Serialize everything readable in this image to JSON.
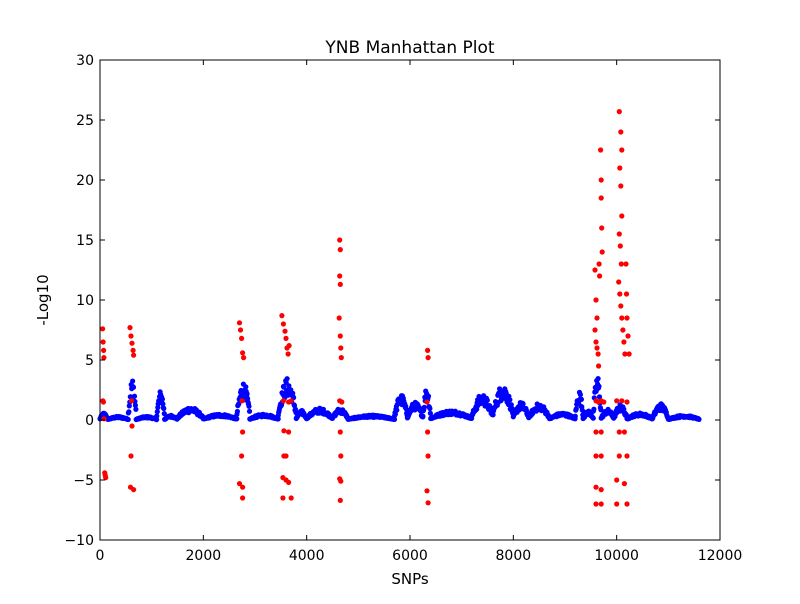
{
  "chart_data": {
    "type": "scatter",
    "title": "YNB Manhattan Plot",
    "xlabel": "SNPs",
    "ylabel": "-Log10",
    "xlim": [
      0,
      12000
    ],
    "ylim": [
      -10,
      30
    ],
    "xticks": [
      0,
      2000,
      4000,
      6000,
      8000,
      10000,
      12000
    ],
    "yticks": [
      -10,
      -5,
      0,
      5,
      10,
      15,
      20,
      25,
      30
    ],
    "xtick_labels": [
      "0",
      "2000",
      "4000",
      "6000",
      "8000",
      "10000",
      "12000"
    ],
    "ytick_labels": [
      "−10",
      "−5",
      "0",
      "5",
      "10",
      "15",
      "20",
      "25",
      "30"
    ],
    "grid": false,
    "series": [
      {
        "color": "#0000ff",
        "segments": [
          [
            0,
            150,
            0.6
          ],
          [
            150,
            550,
            0.3
          ],
          [
            550,
            700,
            3.5
          ],
          [
            700,
            1100,
            0.3
          ],
          [
            1100,
            1250,
            2.5
          ],
          [
            1250,
            1500,
            0.4
          ],
          [
            1500,
            2000,
            1.1
          ],
          [
            2000,
            2650,
            0.5
          ],
          [
            2650,
            2900,
            3.2
          ],
          [
            2900,
            3450,
            0.5
          ],
          [
            3450,
            3800,
            3.5
          ],
          [
            3800,
            4000,
            0.8
          ],
          [
            4000,
            4500,
            1.0
          ],
          [
            4500,
            4800,
            1.0
          ],
          [
            4800,
            5700,
            0.4
          ],
          [
            5700,
            5950,
            2.2
          ],
          [
            5950,
            6250,
            1.5
          ],
          [
            6250,
            6400,
            2.8
          ],
          [
            6400,
            7200,
            0.8
          ],
          [
            7200,
            7600,
            2.2
          ],
          [
            7600,
            8000,
            3.0
          ],
          [
            8000,
            8300,
            1.5
          ],
          [
            8300,
            8700,
            1.4
          ],
          [
            8700,
            9200,
            0.6
          ],
          [
            9200,
            9350,
            2.5
          ],
          [
            9350,
            9550,
            0.8
          ],
          [
            9550,
            9700,
            3.8
          ],
          [
            9700,
            9950,
            0.9
          ],
          [
            9950,
            10200,
            1.3
          ],
          [
            10200,
            10700,
            0.6
          ],
          [
            10700,
            11000,
            1.4
          ],
          [
            11000,
            11600,
            0.4
          ]
        ]
      },
      {
        "color": "#ff0000",
        "points": [
          [
            50,
            7.6
          ],
          [
            60,
            6.5
          ],
          [
            70,
            5.8
          ],
          [
            75,
            5.2
          ],
          [
            55,
            1.6
          ],
          [
            65,
            1.5
          ],
          [
            80,
            0.1
          ],
          [
            90,
            -4.4
          ],
          [
            100,
            -4.6
          ],
          [
            110,
            -4.8
          ],
          [
            580,
            7.7
          ],
          [
            600,
            7.0
          ],
          [
            620,
            6.4
          ],
          [
            640,
            5.8
          ],
          [
            650,
            5.4
          ],
          [
            610,
            1.6
          ],
          [
            620,
            -0.5
          ],
          [
            600,
            -3.0
          ],
          [
            590,
            -5.6
          ],
          [
            650,
            -5.8
          ],
          [
            2700,
            8.1
          ],
          [
            2720,
            7.5
          ],
          [
            2740,
            6.8
          ],
          [
            2760,
            5.6
          ],
          [
            2780,
            5.2
          ],
          [
            2750,
            1.6
          ],
          [
            2760,
            -1.0
          ],
          [
            2740,
            -3.0
          ],
          [
            2700,
            -5.3
          ],
          [
            2760,
            -5.6
          ],
          [
            2760,
            -6.5
          ],
          [
            3520,
            8.7
          ],
          [
            3550,
            8.0
          ],
          [
            3580,
            7.4
          ],
          [
            3600,
            6.8
          ],
          [
            3620,
            6.0
          ],
          [
            3640,
            5.5
          ],
          [
            3660,
            6.2
          ],
          [
            3550,
            1.6
          ],
          [
            3650,
            1.5
          ],
          [
            3700,
            1.6
          ],
          [
            3560,
            -0.9
          ],
          [
            3650,
            -1.0
          ],
          [
            3560,
            -3.0
          ],
          [
            3600,
            -3.0
          ],
          [
            3540,
            -4.8
          ],
          [
            3600,
            -5.0
          ],
          [
            3650,
            -5.2
          ],
          [
            3540,
            -6.5
          ],
          [
            3700,
            -6.5
          ],
          [
            4640,
            15.0
          ],
          [
            4650,
            14.2
          ],
          [
            4640,
            12.0
          ],
          [
            4650,
            11.3
          ],
          [
            4630,
            8.5
          ],
          [
            4650,
            7.0
          ],
          [
            4660,
            6.0
          ],
          [
            4670,
            5.2
          ],
          [
            4640,
            1.6
          ],
          [
            4680,
            1.5
          ],
          [
            4650,
            -1.0
          ],
          [
            4660,
            -3.0
          ],
          [
            4640,
            -4.9
          ],
          [
            4660,
            -5.1
          ],
          [
            4650,
            -6.7
          ],
          [
            6340,
            5.8
          ],
          [
            6350,
            5.2
          ],
          [
            6330,
            1.5
          ],
          [
            6340,
            -1.0
          ],
          [
            6350,
            -3.0
          ],
          [
            6330,
            -5.9
          ],
          [
            6350,
            -6.9
          ],
          [
            9580,
            12.5
          ],
          [
            9600,
            10.0
          ],
          [
            9620,
            8.5
          ],
          [
            9580,
            7.5
          ],
          [
            9600,
            6.5
          ],
          [
            9620,
            6.0
          ],
          [
            9640,
            5.5
          ],
          [
            9650,
            4.5
          ],
          [
            9660,
            13.0
          ],
          [
            9670,
            12.0
          ],
          [
            9690,
            22.5
          ],
          [
            9700,
            20.0
          ],
          [
            9700,
            18.5
          ],
          [
            9710,
            16.0
          ],
          [
            9720,
            14.0
          ],
          [
            9600,
            1.6
          ],
          [
            9650,
            1.5
          ],
          [
            9700,
            1.6
          ],
          [
            9750,
            1.5
          ],
          [
            9600,
            -1.0
          ],
          [
            9700,
            -1.0
          ],
          [
            9600,
            -3.0
          ],
          [
            9700,
            -3.0
          ],
          [
            9600,
            -5.6
          ],
          [
            9700,
            -5.8
          ],
          [
            9600,
            -7.0
          ],
          [
            9700,
            -7.0
          ],
          [
            10050,
            25.7
          ],
          [
            10080,
            24.0
          ],
          [
            10100,
            22.5
          ],
          [
            10060,
            21.0
          ],
          [
            10080,
            19.5
          ],
          [
            10100,
            17.0
          ],
          [
            10050,
            15.5
          ],
          [
            10070,
            14.5
          ],
          [
            10090,
            13.0
          ],
          [
            10040,
            11.5
          ],
          [
            10060,
            10.5
          ],
          [
            10080,
            9.5
          ],
          [
            10100,
            8.5
          ],
          [
            10120,
            7.5
          ],
          [
            10140,
            6.5
          ],
          [
            10160,
            5.5
          ],
          [
            10180,
            13.0
          ],
          [
            10190,
            10.5
          ],
          [
            10200,
            8.5
          ],
          [
            10220,
            7.0
          ],
          [
            10240,
            5.5
          ],
          [
            10000,
            1.6
          ],
          [
            10100,
            1.6
          ],
          [
            10200,
            1.5
          ],
          [
            10050,
            -1.0
          ],
          [
            10150,
            -1.0
          ],
          [
            10050,
            -3.0
          ],
          [
            10200,
            -3.0
          ],
          [
            10000,
            -5.0
          ],
          [
            10150,
            -5.3
          ],
          [
            10000,
            -7.0
          ],
          [
            10200,
            -7.0
          ]
        ]
      }
    ]
  }
}
